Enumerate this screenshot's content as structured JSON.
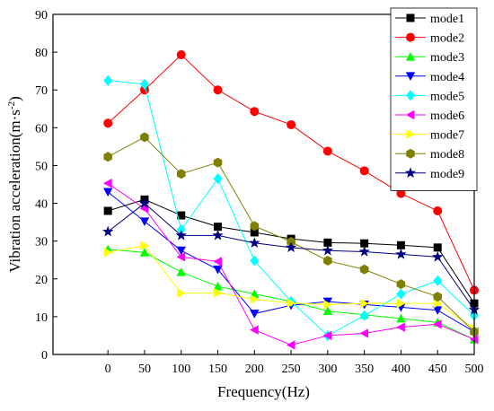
{
  "chart_data": {
    "type": "line",
    "xlabel": "Frequency(Hz)",
    "ylabel_main": "Vibration acceleration(m·s",
    "ylabel_sup": "-2",
    "ylabel_close": ")",
    "x": [
      0,
      50,
      100,
      150,
      200,
      250,
      300,
      350,
      400,
      450,
      500
    ],
    "xlim": [
      -75,
      500
    ],
    "ylim": [
      0,
      90
    ],
    "xticks": [
      0,
      50,
      100,
      150,
      200,
      250,
      300,
      350,
      400,
      450,
      500
    ],
    "yticks": [
      0,
      10,
      20,
      30,
      40,
      50,
      60,
      70,
      80,
      90
    ],
    "grid": false,
    "legend_position": "top-right",
    "series": [
      {
        "name": "mode1",
        "color": "#000000",
        "marker": "square",
        "values": [
          38,
          41,
          36.8,
          33.8,
          32.3,
          30.6,
          29.6,
          29.4,
          28.9,
          28.3,
          13.5
        ]
      },
      {
        "name": "mode2",
        "color": "#ff0000",
        "marker": "circle",
        "values": [
          61.2,
          70,
          79.3,
          70,
          64.3,
          60.8,
          53.8,
          48.6,
          42.6,
          38,
          17
        ]
      },
      {
        "name": "mode3",
        "color": "#00ff00",
        "marker": "triangle-up",
        "values": [
          27.8,
          27,
          21.8,
          18,
          16,
          14,
          11.5,
          10.5,
          9.5,
          8.5,
          4
        ]
      },
      {
        "name": "mode4",
        "color": "#0000ff",
        "marker": "triangle-down",
        "values": [
          43,
          35.2,
          27.5,
          22.5,
          10.8,
          13,
          14,
          13.2,
          12.5,
          11.7,
          6
        ]
      },
      {
        "name": "mode5",
        "color": "#00ffff",
        "marker": "diamond",
        "values": [
          72.5,
          71.5,
          33,
          46.5,
          24.8,
          14,
          5,
          10.3,
          16,
          19.5,
          10.3
        ]
      },
      {
        "name": "mode6",
        "color": "#ff00ff",
        "marker": "triangle-left",
        "values": [
          45.3,
          38.6,
          25.8,
          24.6,
          6.5,
          2.5,
          5,
          5.6,
          7.2,
          8,
          4
        ]
      },
      {
        "name": "mode7",
        "color": "#ffff00",
        "marker": "triangle-right",
        "values": [
          27,
          28.8,
          16.2,
          16.3,
          14.6,
          13.6,
          13.2,
          13.5,
          13.5,
          13.5,
          6.8
        ]
      },
      {
        "name": "mode8",
        "color": "#808000",
        "marker": "hexagon",
        "values": [
          52.3,
          57.5,
          47.8,
          50.8,
          34,
          29.8,
          24.8,
          22.5,
          18.6,
          15.3,
          6
        ]
      },
      {
        "name": "mode9",
        "color": "#000080",
        "marker": "star",
        "values": [
          32.5,
          40,
          31.5,
          31.5,
          29.5,
          28.3,
          27.5,
          27.2,
          26.5,
          25.8,
          11.8
        ]
      }
    ]
  }
}
